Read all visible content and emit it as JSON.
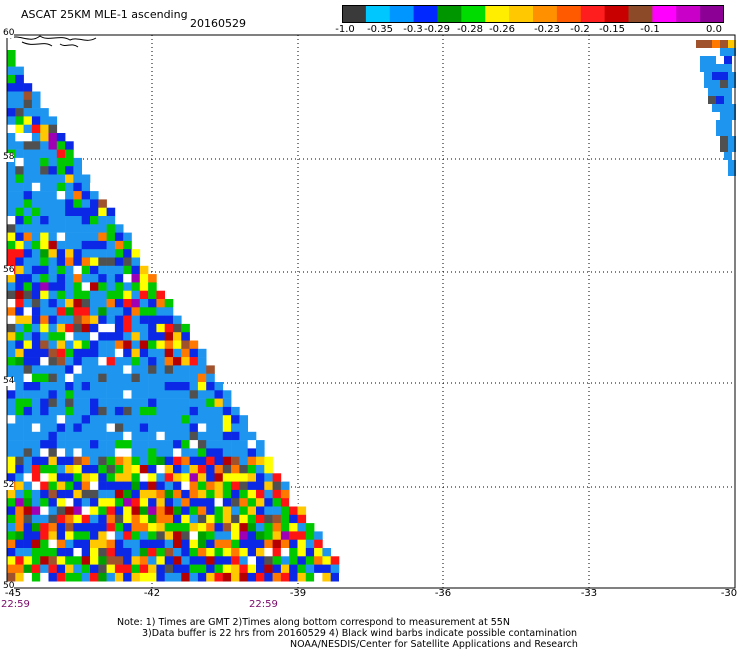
{
  "header": {
    "title": "ASCAT 25KM MLE-1 ascending",
    "date": "20160529"
  },
  "colorbar": {
    "labels": [
      "-1.0",
      "-0.35",
      "-0.3",
      "-0.29",
      "-0.28",
      "-0.26",
      "-0.23",
      "-0.2",
      "-0.15",
      "-0.1",
      "0.0"
    ],
    "colors": [
      "#3a3a3a",
      "#00c8ff",
      "#0096ff",
      "#0028ff",
      "#009600",
      "#00dc00",
      "#ffee00",
      "#ffc800",
      "#ff9000",
      "#ff5a00",
      "#ff1e1e",
      "#c80000",
      "#8c4a28",
      "#ff00ff",
      "#c800c8",
      "#8c0096"
    ]
  },
  "axes": {
    "lat_labels": [
      "60",
      "58",
      "56",
      "54",
      "52",
      "50"
    ],
    "lon_labels": [
      "-45",
      "-42",
      "-39",
      "-36",
      "-33",
      "-30"
    ],
    "time_labels": [
      "22:59",
      "22:59"
    ]
  },
  "legend_colors": {
    "light_blue": "#1e96f0",
    "blue": "#0a28e6",
    "dark_gray": "#505050",
    "green": "#00c800",
    "dark_green": "#00a000",
    "yellow": "#ffff00",
    "gold": "#ffc800",
    "orange": "#ff7800",
    "red": "#ff1414",
    "dark_red": "#b40000",
    "brown": "#a0522d",
    "magenta": "#ff00ff",
    "purple": "#a000b4",
    "white": "#ffffff"
  },
  "notes": {
    "line1": "Note: 1) Times are GMT 2)Times along bottom correspond to measurement at 55N",
    "line2": "3)Data buffer is 22 hrs from 20160529 4) Black wind barbs indicate possible contamination",
    "line3": "NOAA/NESDIS/Center for Satellite Applications and Research"
  }
}
